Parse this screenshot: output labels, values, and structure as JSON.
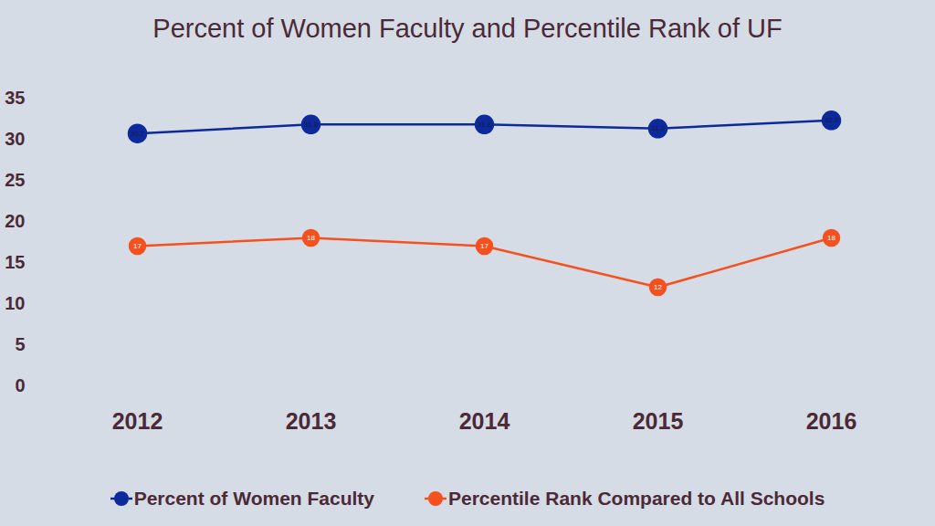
{
  "chart_data": {
    "type": "line",
    "title": "Percent of Women Faculty and Percentile Rank of UF",
    "categories": [
      "2012",
      "2013",
      "2014",
      "2015",
      "2016"
    ],
    "series": [
      {
        "name": "Percent of Women Faculty",
        "color": "#0c2a9c",
        "marker": "circle",
        "values": [
          30.7,
          31.8,
          31.8,
          31.3,
          32.3
        ]
      },
      {
        "name": "Percentile Rank Compared to All Schools",
        "color": "#f4511e",
        "marker": "circle",
        "values": [
          17,
          18,
          17,
          12,
          18
        ]
      }
    ],
    "ylim": [
      0,
      35
    ],
    "yticks": [
      0,
      5,
      10,
      15,
      20,
      25,
      30,
      35
    ],
    "grid": false,
    "legend": "bottom",
    "data_labels": true
  }
}
